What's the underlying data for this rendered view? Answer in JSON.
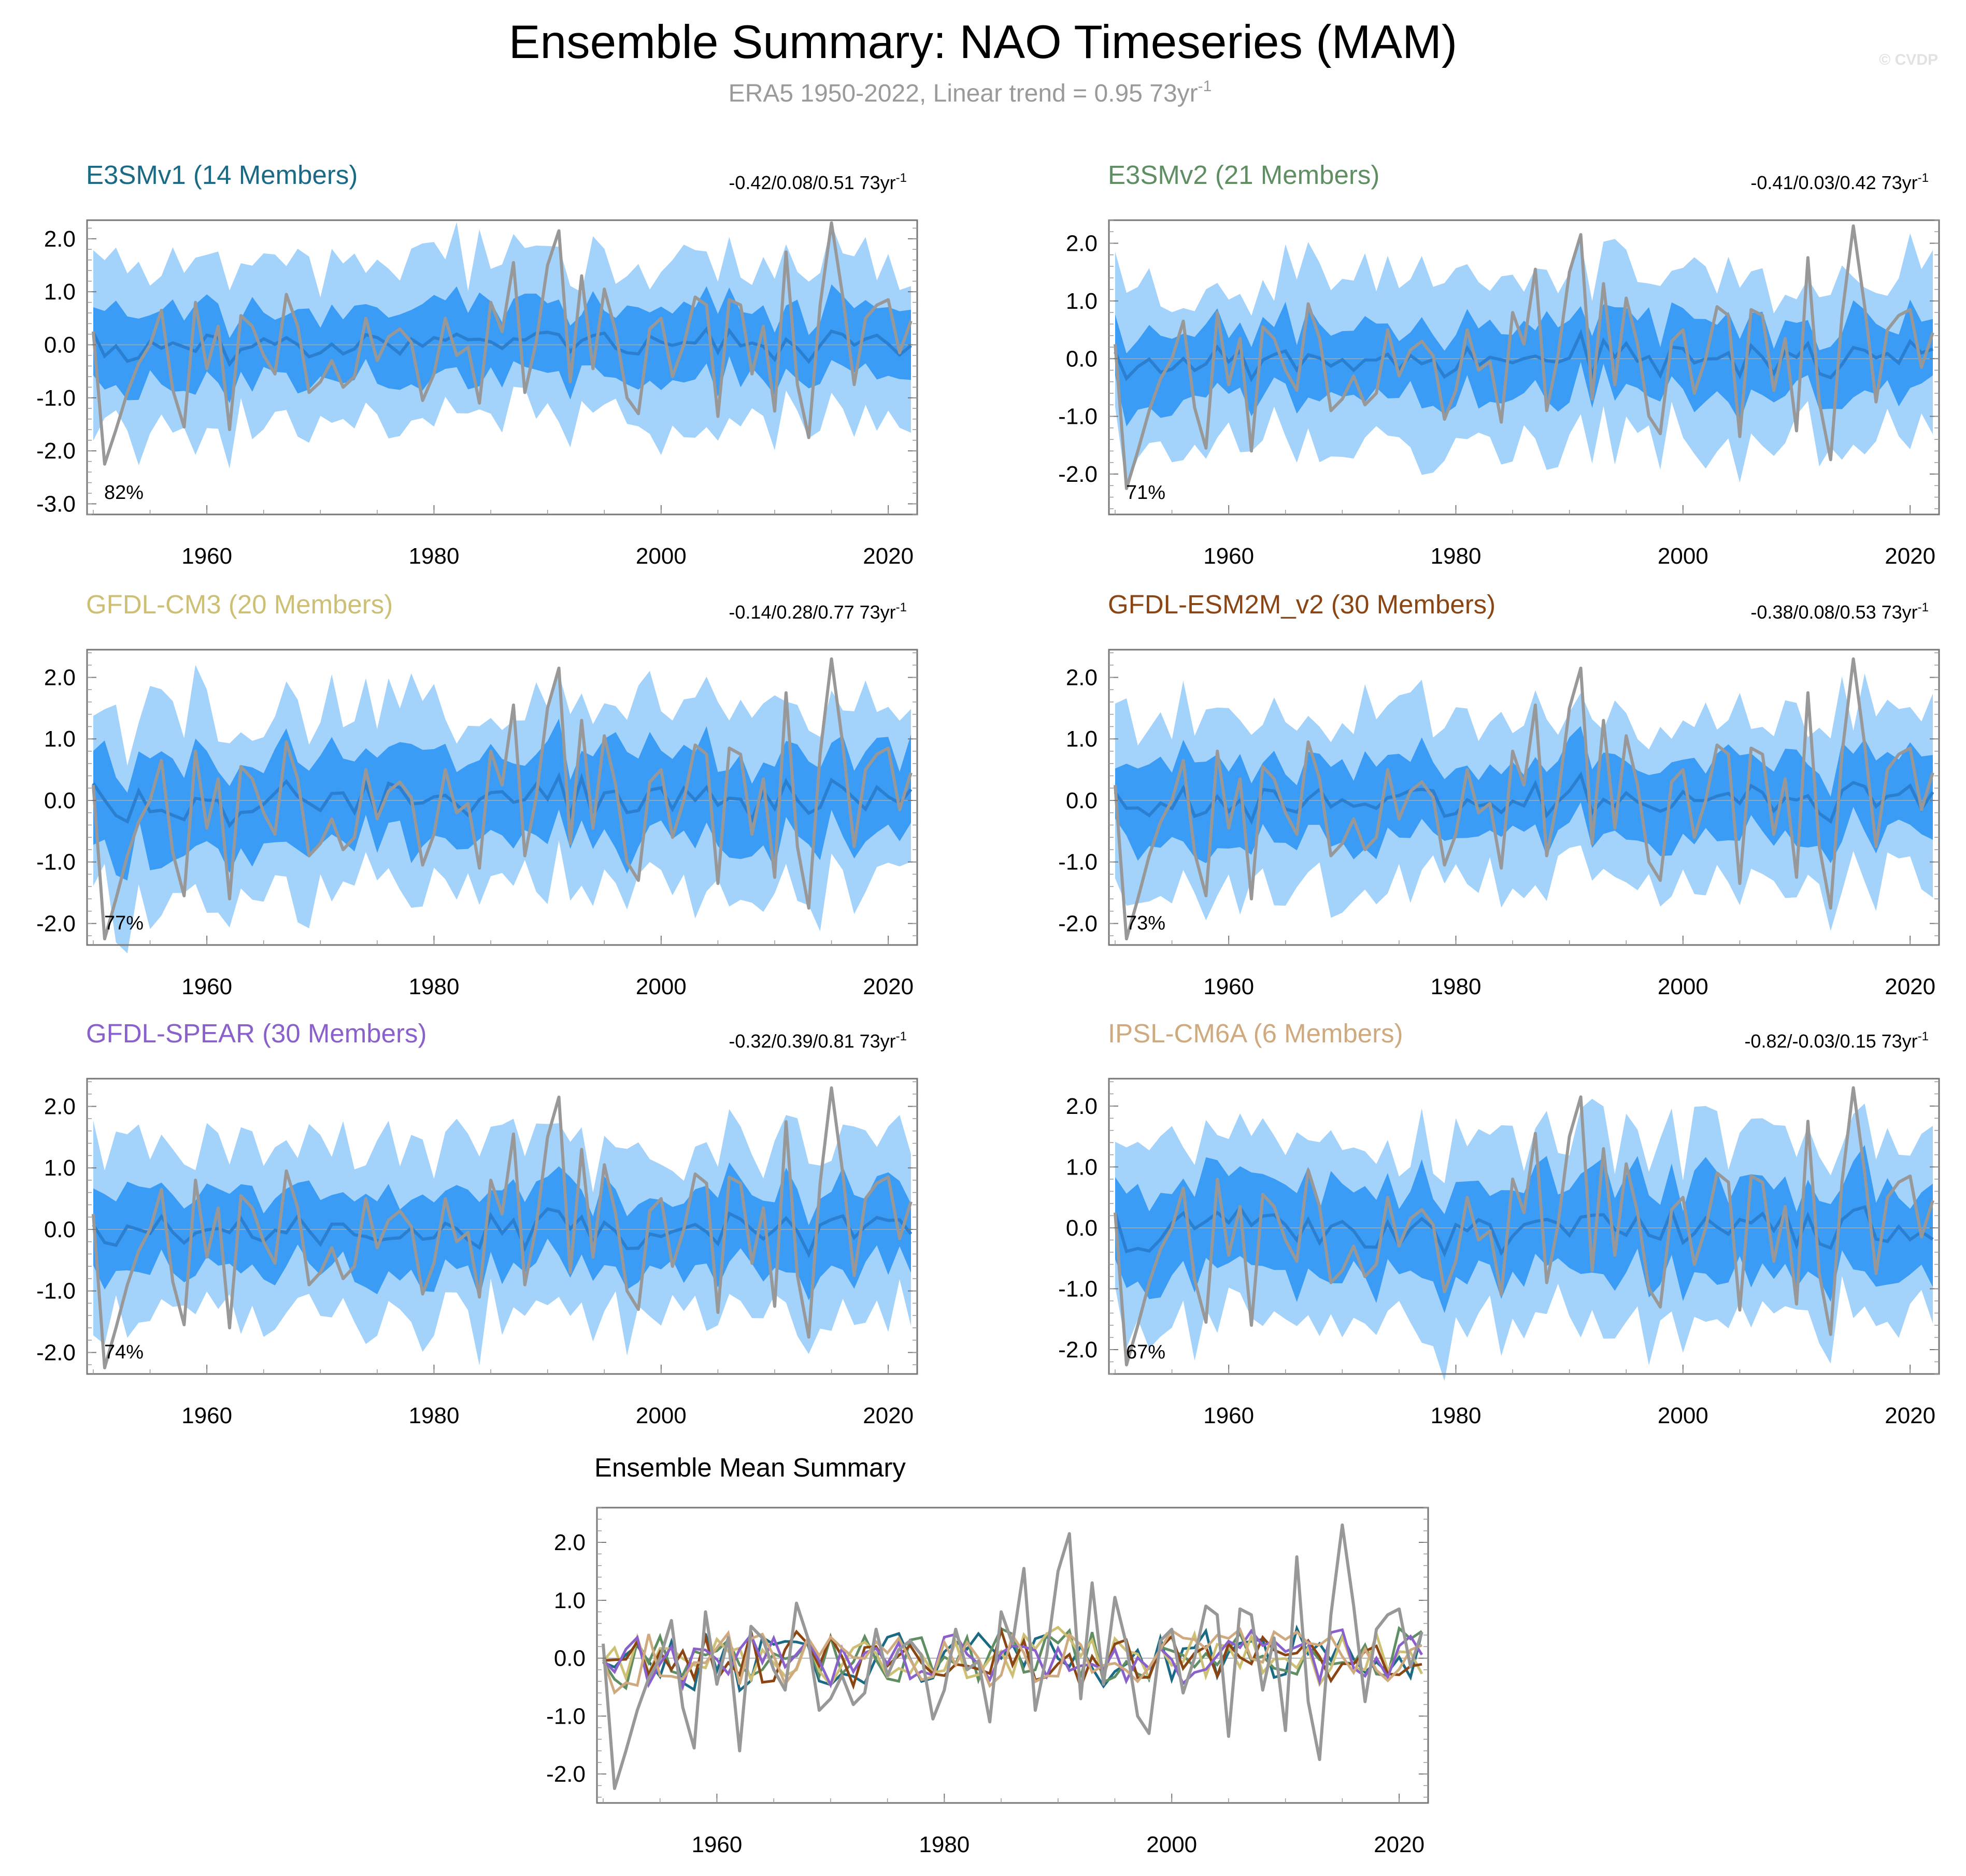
{
  "header": {
    "title": "Ensemble Summary: NAO Timeseries (MAM)",
    "subtitle_main": "ERA5 1950-2022, Linear trend = 0.95 73yr",
    "subtitle_sup": "-1",
    "watermark": "© CVDP"
  },
  "colors": {
    "outer_band": "#a3d2fb",
    "inner_band": "#3b9cf5",
    "ensemble_mean": "#2b7fd0",
    "observations": "#989898"
  },
  "axis": {
    "x_ticks": [
      "1960",
      "1980",
      "2000",
      "2020"
    ],
    "x_tick_values": [
      1960,
      1980,
      2000,
      2020
    ],
    "year_range": [
      1950,
      2022
    ]
  },
  "chart_data": [
    {
      "type": "area",
      "name": "E3SMv1 (14 Members)",
      "title_color": "#1a6a85",
      "stat_text": "-0.42/0.08/0.51 73yr",
      "stat_sup": "-1",
      "percent_label": "82%",
      "ylim": [
        -3.2,
        2.35
      ],
      "y_ticks": [
        "2.0",
        "1.0",
        "0.0",
        "-1.0",
        "-2.0",
        "-3.0"
      ],
      "y_tick_values": [
        2,
        1,
        0,
        -1,
        -2,
        -3
      ],
      "seed": 11,
      "mean_scale": 0.24,
      "inner_scale": 0.75,
      "outer_scale": 1.55
    },
    {
      "type": "area",
      "name": "E3SMv2 (21 Members)",
      "title_color": "#5f8e63",
      "stat_text": "-0.41/0.03/0.42 73yr",
      "stat_sup": "-1",
      "percent_label": "71%",
      "ylim": [
        -2.7,
        2.4
      ],
      "y_ticks": [
        "2.0",
        "1.0",
        "0.0",
        "-1.0",
        "-2.0"
      ],
      "y_tick_values": [
        2,
        1,
        0,
        -1,
        -2
      ],
      "seed": 23,
      "mean_scale": 0.2,
      "inner_scale": 0.72,
      "outer_scale": 1.5
    },
    {
      "type": "area",
      "name": "GFDL-CM3 (20 Members)",
      "title_color": "#cdbf73",
      "stat_text": "-0.14/0.28/0.77 73yr",
      "stat_sup": "-1",
      "percent_label": "77%",
      "ylim": [
        -2.35,
        2.45
      ],
      "y_ticks": [
        "2.0",
        "1.0",
        "0.0",
        "-1.0",
        "-2.0"
      ],
      "y_tick_values": [
        2,
        1,
        0,
        -1,
        -2
      ],
      "seed": 37,
      "mean_scale": 0.28,
      "inner_scale": 0.8,
      "outer_scale": 1.5
    },
    {
      "type": "area",
      "name": "GFDL-ESM2M_v2 (30 Members)",
      "title_color": "#8b4513",
      "stat_text": "-0.38/0.08/0.53 73yr",
      "stat_sup": "-1",
      "percent_label": "73%",
      "ylim": [
        -2.35,
        2.45
      ],
      "y_ticks": [
        "2.0",
        "1.0",
        "0.0",
        "-1.0",
        "-2.0"
      ],
      "y_tick_values": [
        2,
        1,
        0,
        -1,
        -2
      ],
      "seed": 41,
      "mean_scale": 0.16,
      "inner_scale": 0.7,
      "outer_scale": 1.45
    },
    {
      "type": "area",
      "name": "GFDL-SPEAR (30 Members)",
      "title_color": "#8a60cc",
      "stat_text": "-0.32/0.39/0.81 73yr",
      "stat_sup": "-1",
      "percent_label": "74%",
      "ylim": [
        -2.35,
        2.45
      ],
      "y_ticks": [
        "2.0",
        "1.0",
        "0.0",
        "-1.0",
        "-2.0"
      ],
      "y_tick_values": [
        2,
        1,
        0,
        -1,
        -2
      ],
      "seed": 53,
      "mean_scale": 0.2,
      "inner_scale": 0.72,
      "outer_scale": 1.45
    },
    {
      "type": "area",
      "name": "IPSL-CM6A (6 Members)",
      "title_color": "#d0aa7f",
      "stat_text": "-0.82/-0.03/0.15 73yr",
      "stat_sup": "-1",
      "percent_label": "67%",
      "ylim": [
        -2.4,
        2.45
      ],
      "y_ticks": [
        "2.0",
        "1.0",
        "0.0",
        "-1.0",
        "-2.0"
      ],
      "y_tick_values": [
        2,
        1,
        0,
        -1,
        -2
      ],
      "seed": 67,
      "mean_scale": 0.32,
      "inner_scale": 0.85,
      "outer_scale": 1.4
    },
    {
      "type": "line",
      "name": "Ensemble Mean Summary",
      "ylim": [
        -2.5,
        2.6
      ],
      "y_ticks": [
        "2.0",
        "1.0",
        "0.0",
        "-1.0",
        "-2.0"
      ],
      "y_tick_values": [
        2,
        1,
        0,
        -1,
        -2
      ],
      "series_colors": [
        "#1a6a85",
        "#5f8e63",
        "#cdbf73",
        "#8b4513",
        "#8a60cc",
        "#d0aa7f"
      ]
    }
  ],
  "observations": {
    "name": "ERA5",
    "years": [
      1950,
      1951,
      1952,
      1953,
      1954,
      1955,
      1956,
      1957,
      1958,
      1959,
      1960,
      1961,
      1962,
      1963,
      1964,
      1965,
      1966,
      1967,
      1968,
      1969,
      1970,
      1971,
      1972,
      1973,
      1974,
      1975,
      1976,
      1977,
      1978,
      1979,
      1980,
      1981,
      1982,
      1983,
      1984,
      1985,
      1986,
      1987,
      1988,
      1989,
      1990,
      1991,
      1992,
      1993,
      1994,
      1995,
      1996,
      1997,
      1998,
      1999,
      2000,
      2001,
      2002,
      2003,
      2004,
      2005,
      2006,
      2007,
      2008,
      2009,
      2010,
      2011,
      2012,
      2013,
      2014,
      2015,
      2016,
      2017,
      2018,
      2019,
      2020,
      2021,
      2022
    ],
    "values": [
      0.25,
      -2.25,
      -1.6,
      -0.9,
      -0.35,
      0.0,
      0.65,
      -0.85,
      -1.55,
      0.8,
      -0.45,
      0.35,
      -1.6,
      0.55,
      0.35,
      -0.2,
      -0.55,
      0.95,
      0.35,
      -0.9,
      -0.7,
      -0.3,
      -0.8,
      -0.6,
      0.5,
      -0.3,
      0.15,
      0.3,
      0.05,
      -1.05,
      -0.55,
      0.5,
      -0.2,
      -0.05,
      -1.1,
      0.8,
      0.25,
      1.55,
      -0.9,
      0.05,
      1.5,
      2.15,
      -0.7,
      1.3,
      -0.45,
      1.05,
      0.25,
      -1.0,
      -1.3,
      0.3,
      0.5,
      -0.6,
      0.0,
      0.9,
      0.75,
      -1.35,
      0.85,
      0.75,
      -0.55,
      0.35,
      -1.25,
      1.75,
      -0.75,
      -1.75,
      0.75,
      2.3,
      0.9,
      -0.75,
      0.5,
      0.75,
      0.85,
      -0.15,
      0.45
    ]
  }
}
